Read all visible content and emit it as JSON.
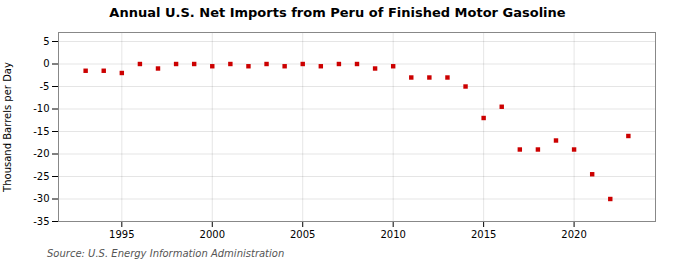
{
  "chart_data": {
    "type": "scatter",
    "title": "Annual U.S. Net Imports from Peru of Finished Motor Gasoline",
    "ylabel": "Thousand Barrels per Day",
    "annotations": [
      "Source: U.S. Energy Information Administration"
    ],
    "x": [
      1993,
      1994,
      1995,
      1996,
      1997,
      1998,
      1999,
      2000,
      2001,
      2002,
      2003,
      2004,
      2005,
      2006,
      2007,
      2008,
      2009,
      2010,
      2011,
      2012,
      2013,
      2014,
      2015,
      2016,
      2017,
      2018,
      2019,
      2020,
      2021,
      2022,
      2023
    ],
    "values": [
      -1.5,
      -1.5,
      -2.0,
      0.0,
      -1.0,
      0.0,
      0.0,
      -0.5,
      0.0,
      -0.5,
      0.0,
      -0.5,
      0.0,
      -0.5,
      0.0,
      0.0,
      -1.0,
      -0.5,
      -3.0,
      -3.0,
      -3.0,
      -5.0,
      -12.0,
      -9.5,
      -19.0,
      -19.0,
      -17.0,
      -19.0,
      -24.5,
      -30.0,
      -16.0
    ],
    "color": "#cc0000",
    "marker": "square",
    "xlim": [
      1991.5,
      2024.5
    ],
    "xticks": [
      1995,
      2000,
      2005,
      2010,
      2015,
      2020
    ],
    "ylim": [
      -35,
      7
    ],
    "yticks": [
      5,
      0,
      -5,
      -10,
      -15,
      -20,
      -25,
      -30,
      -35
    ],
    "grid": true
  }
}
